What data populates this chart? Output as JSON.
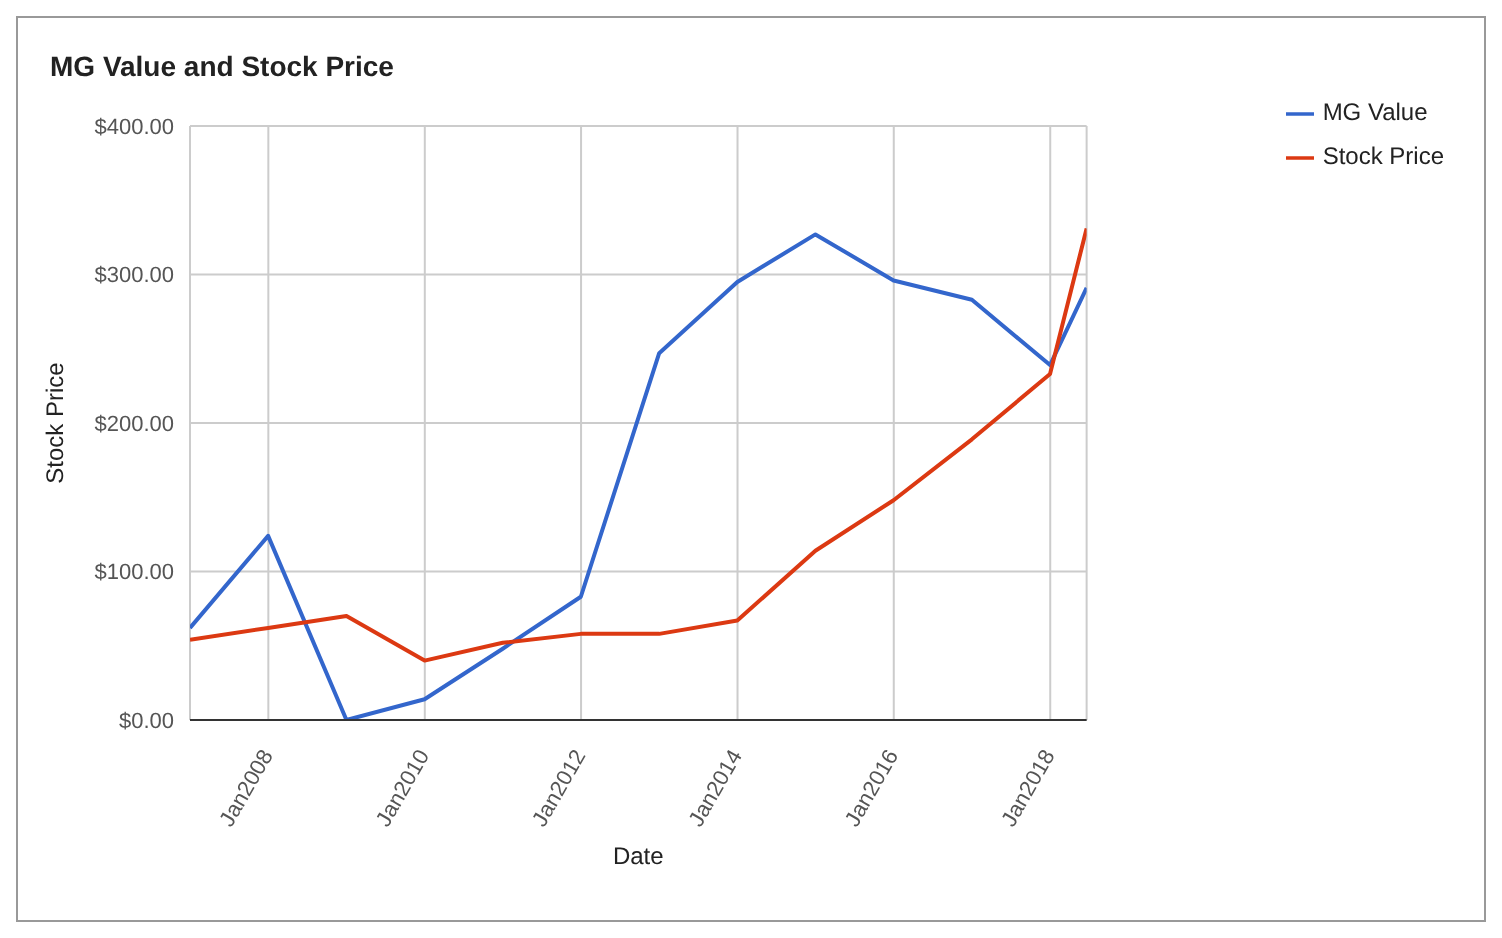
{
  "chart_data": {
    "type": "line",
    "title": "MG Value and Stock Price",
    "xlabel": "Date",
    "ylabel": "Stock Price",
    "x": [
      "2006-12-31",
      "2007-12-31",
      "2008-12-31",
      "2009-12-31",
      "2010-12-31",
      "2011-12-31",
      "2012-12-31",
      "2013-12-31",
      "2014-12-31",
      "2015-12-31",
      "2016-12-31",
      "2017-12-31",
      "2018-06-20"
    ],
    "series": [
      {
        "name": "MG Value",
        "color": "#3366cc",
        "values": [
          62,
          124,
          0,
          14,
          48,
          83,
          247,
          295,
          327,
          296,
          283,
          239,
          291
        ]
      },
      {
        "name": "Stock Price",
        "color": "#dc3912",
        "values": [
          54,
          62,
          70,
          40,
          52,
          58,
          58,
          67,
          114,
          148,
          189,
          233,
          331
        ]
      }
    ],
    "xlim": [
      "2006-12-31",
      "2018-06-20"
    ],
    "xticks": [
      {
        "value": "2008-01-01",
        "label": "Jan2008"
      },
      {
        "value": "2010-01-01",
        "label": "Jan2010"
      },
      {
        "value": "2012-01-01",
        "label": "Jan2012"
      },
      {
        "value": "2014-01-01",
        "label": "Jan2014"
      },
      {
        "value": "2016-01-01",
        "label": "Jan2016"
      },
      {
        "value": "2018-01-01",
        "label": "Jan2018"
      }
    ],
    "ylim": [
      0,
      400
    ],
    "yticks": [
      {
        "value": 0,
        "label": "$0.00"
      },
      {
        "value": 100,
        "label": "$100.00"
      },
      {
        "value": 200,
        "label": "$200.00"
      },
      {
        "value": 300,
        "label": "$300.00"
      },
      {
        "value": 400,
        "label": "$400.00"
      }
    ],
    "grid": true,
    "legend": "top right",
    "marker": "none",
    "line_style": "solid"
  }
}
